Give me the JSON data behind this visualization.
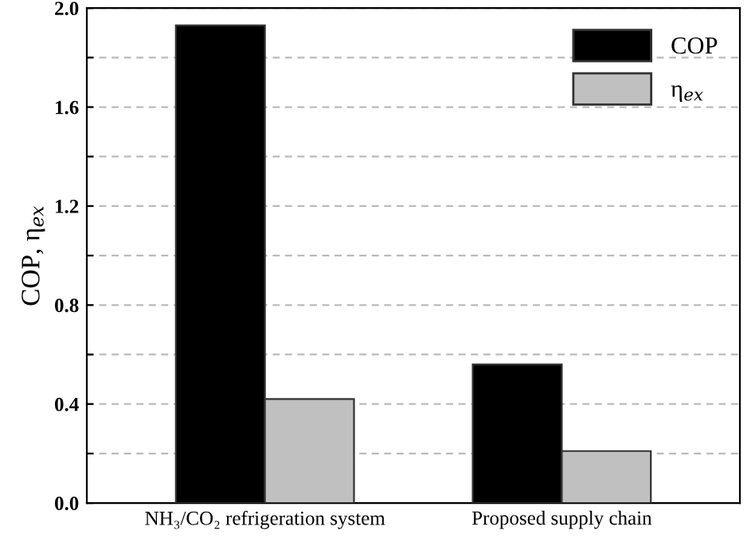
{
  "chart_data": {
    "type": "bar",
    "ylabel": "COP, η$_{ex}$",
    "categories": [
      "NH₃/CO₂ refrigeration system",
      "Proposed supply chain"
    ],
    "series": [
      {
        "name": "COP",
        "color": "#000000",
        "values": [
          1.93,
          0.56
        ]
      },
      {
        "name": "η$_{ex}$",
        "color": "#c0c0c0",
        "values": [
          0.42,
          0.21
        ]
      }
    ],
    "ylim": [
      0,
      2.0
    ],
    "yticks": [
      {
        "value": 0,
        "label": "0.0"
      },
      {
        "value": 0.2,
        "label": null
      },
      0.4,
      {
        "value": 0.6,
        "label": null
      },
      0.8,
      {
        "value": 1.0,
        "label": null
      },
      1.2,
      {
        "value": 1.4,
        "label": null
      },
      1.6,
      {
        "value": 1.8,
        "label": null
      },
      {
        "value": 2.0,
        "label": "2.0"
      }
    ],
    "grid": "y",
    "legend": "top right"
  }
}
